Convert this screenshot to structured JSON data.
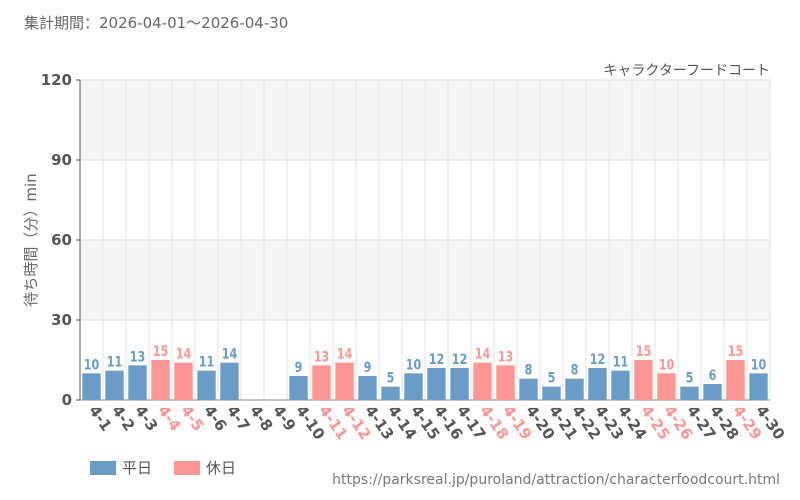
{
  "header": {
    "period_label": "集計期間：2026-04-01～2026-04-30"
  },
  "chart_data": {
    "type": "bar",
    "title": "キャラクターフードコート",
    "ylabel": "待ち時間（分）min",
    "ylim": [
      0,
      120
    ],
    "yticks": [
      0,
      30,
      60,
      90,
      120
    ],
    "grid": true,
    "categories": [
      "4-1",
      "4-2",
      "4-3",
      "4-4",
      "4-5",
      "4-6",
      "4-7",
      "4-8",
      "4-9",
      "4-10",
      "4-11",
      "4-12",
      "4-13",
      "4-14",
      "4-15",
      "4-16",
      "4-17",
      "4-18",
      "4-19",
      "4-20",
      "4-21",
      "4-22",
      "4-23",
      "4-24",
      "4-25",
      "4-26",
      "4-27",
      "4-28",
      "4-29",
      "4-30"
    ],
    "values": [
      10,
      11,
      13,
      15,
      14,
      11,
      14,
      null,
      null,
      9,
      13,
      14,
      9,
      5,
      10,
      12,
      12,
      14,
      13,
      8,
      5,
      8,
      12,
      11,
      15,
      10,
      5,
      6,
      15,
      10
    ],
    "day_type": [
      "平日",
      "平日",
      "平日",
      "休日",
      "休日",
      "平日",
      "平日",
      "平日",
      "平日",
      "平日",
      "休日",
      "休日",
      "平日",
      "平日",
      "平日",
      "平日",
      "平日",
      "休日",
      "休日",
      "平日",
      "平日",
      "平日",
      "平日",
      "平日",
      "休日",
      "休日",
      "平日",
      "平日",
      "休日",
      "平日"
    ],
    "series": [
      {
        "name": "平日",
        "color": "#6a9cc6"
      },
      {
        "name": "休日",
        "color": "#ff9696"
      }
    ],
    "legend_position": "bottom-left"
  },
  "footer": {
    "source_url": "https://parksreal.jp/puroland/attraction/characterfoodcourt.html"
  }
}
